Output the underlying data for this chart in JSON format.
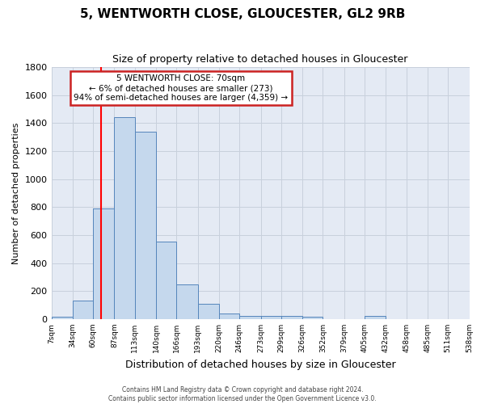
{
  "title": "5, WENTWORTH CLOSE, GLOUCESTER, GL2 9RB",
  "subtitle": "Size of property relative to detached houses in Gloucester",
  "xlabel": "Distribution of detached houses by size in Gloucester",
  "ylabel": "Number of detached properties",
  "bin_edges": [
    7,
    34,
    60,
    87,
    113,
    140,
    166,
    193,
    220,
    246,
    273,
    299,
    326,
    352,
    379,
    405,
    432,
    458,
    485,
    511,
    538
  ],
  "bar_heights": [
    15,
    130,
    790,
    1440,
    1340,
    555,
    245,
    110,
    40,
    25,
    25,
    20,
    15,
    0,
    0,
    20,
    0,
    0,
    0,
    0
  ],
  "bar_face_color": "#c5d8ed",
  "bar_edge_color": "#5585bb",
  "property_line_x": 70,
  "property_line_color": "red",
  "ylim": [
    0,
    1800
  ],
  "yticks": [
    0,
    200,
    400,
    600,
    800,
    1000,
    1200,
    1400,
    1600,
    1800
  ],
  "grid_color": "#c8d0dc",
  "background_color": "#e4eaf4",
  "annotation_text": "5 WENTWORTH CLOSE: 70sqm\n← 6% of detached houses are smaller (273)\n94% of semi-detached houses are larger (4,359) →",
  "annotation_box_color": "white",
  "annotation_box_edge_color": "#cc2222",
  "footer_line1": "Contains HM Land Registry data © Crown copyright and database right 2024.",
  "footer_line2": "Contains public sector information licensed under the Open Government Licence v3.0.",
  "tick_labels": [
    "7sqm",
    "34sqm",
    "60sqm",
    "87sqm",
    "113sqm",
    "140sqm",
    "166sqm",
    "193sqm",
    "220sqm",
    "246sqm",
    "273sqm",
    "299sqm",
    "326sqm",
    "352sqm",
    "379sqm",
    "405sqm",
    "432sqm",
    "458sqm",
    "485sqm",
    "511sqm",
    "538sqm"
  ]
}
